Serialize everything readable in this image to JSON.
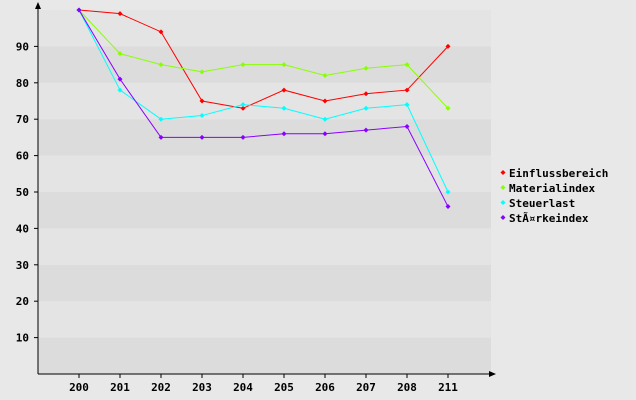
{
  "chart_data": {
    "type": "line",
    "title": "",
    "xlabel": "",
    "ylabel": "",
    "categories": [
      "200",
      "201",
      "202",
      "203",
      "204",
      "205",
      "206",
      "207",
      "208",
      "211"
    ],
    "ylim": [
      0,
      100
    ],
    "yticks": [
      10,
      20,
      30,
      40,
      50,
      60,
      70,
      80,
      90
    ],
    "grid": "horizontal alternating bands",
    "legend_position": "right",
    "series": [
      {
        "name": "Einflussbereich",
        "color": "#ff0000",
        "values": [
          100,
          99,
          94,
          75,
          73,
          78,
          75,
          77,
          78,
          90
        ]
      },
      {
        "name": "Materialindex",
        "color": "#88ff00",
        "values": [
          100,
          88,
          85,
          83,
          85,
          85,
          82,
          84,
          85,
          73
        ]
      },
      {
        "name": "Steuerlast",
        "color": "#00ffff",
        "values": [
          100,
          78,
          70,
          71,
          74,
          73,
          70,
          73,
          74,
          50
        ]
      },
      {
        "name": "StÃ¤rkeindex",
        "color": "#8800ff",
        "values": [
          100,
          81,
          65,
          65,
          65,
          66,
          66,
          67,
          68,
          46
        ]
      }
    ]
  }
}
